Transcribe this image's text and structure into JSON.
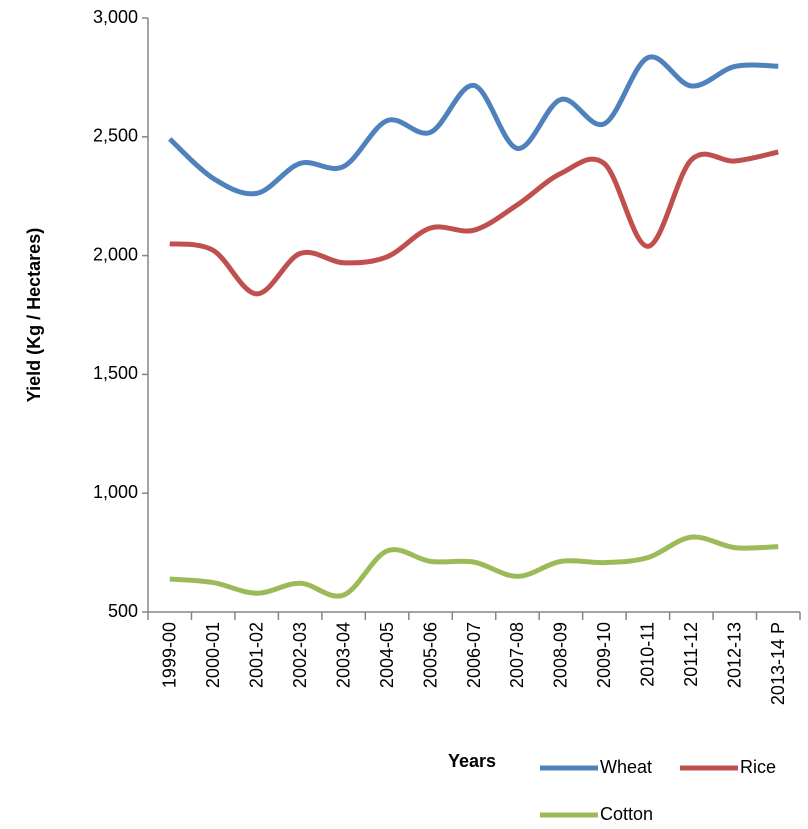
{
  "chart_data": {
    "type": "line",
    "y_label": "Yield (Kg / Hectares)",
    "x_label": "Years",
    "categories": [
      "1999-00",
      "2000-01",
      "2001-02",
      "2002-03",
      "2003-04",
      "2004-05",
      "2005-06",
      "2006-07",
      "2007-08",
      "2008-09",
      "2009-10",
      "2010-11",
      "2011-12",
      "2012-13",
      "2013-14 P"
    ],
    "series": [
      {
        "name": "Wheat",
        "color": "#4f81bd",
        "values": [
          2491,
          2325,
          2262,
          2388,
          2375,
          2568,
          2519,
          2716,
          2451,
          2657,
          2555,
          2833,
          2714,
          2796,
          2797
        ]
      },
      {
        "name": "Rice",
        "color": "#c0504d",
        "values": [
          2050,
          2022,
          1839,
          2009,
          1970,
          1995,
          2116,
          2107,
          2214,
          2346,
          2387,
          2039,
          2403,
          2398,
          2436
        ]
      },
      {
        "name": "Cotton",
        "color": "#9bbb59",
        "values": [
          639,
          624,
          579,
          621,
          571,
          757,
          713,
          710,
          650,
          713,
          708,
          729,
          815,
          771,
          775
        ]
      }
    ],
    "ylim": [
      500,
      3000
    ],
    "yticks": [
      {
        "value": 500,
        "label": "500"
      },
      {
        "value": 1000,
        "label": "1,000"
      },
      {
        "value": 1500,
        "label": "1,500"
      },
      {
        "value": 2000,
        "label": "2,000"
      },
      {
        "value": 2500,
        "label": "2,500"
      },
      {
        "value": 3000,
        "label": "3,000"
      }
    ],
    "smooth": true
  }
}
